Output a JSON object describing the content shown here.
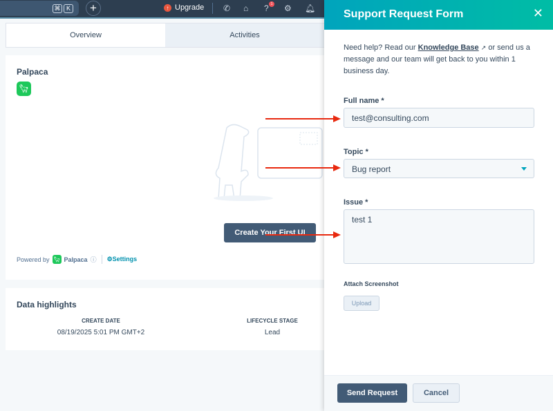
{
  "topbar": {
    "kbd_cmd": "⌘",
    "kbd_k": "K",
    "upgrade": "Upgrade",
    "notification_count": "1"
  },
  "tabs": [
    {
      "label": "Overview"
    },
    {
      "label": "Activities"
    }
  ],
  "app_card": {
    "title": "Palpaca",
    "create_button": "Create Your First UI",
    "powered_by": "Powered by",
    "brand": "Palpaca",
    "settings": "Settings"
  },
  "highlights": {
    "title": "Data highlights",
    "columns": [
      {
        "header": "CREATE DATE",
        "value": "08/19/2025 5:01 PM GMT+2"
      },
      {
        "header": "LIFECYCLE STAGE",
        "value": "Lead"
      }
    ]
  },
  "panel": {
    "title": "Support Request Form",
    "intro_before": "Need help? Read our ",
    "kb_link": "Knowledge Base",
    "intro_after": " or send us a message and our team will get back to you within 1 business day.",
    "full_name_label": "Full name *",
    "full_name_value": "test@consulting.com",
    "topic_label": "Topic *",
    "topic_value": "Bug report",
    "issue_label": "Issue *",
    "issue_value": "test 1",
    "attach_label": "Attach Screenshot",
    "upload": "Upload",
    "send": "Send Request",
    "cancel": "Cancel"
  },
  "colors": {
    "accent": "#00a4bd",
    "primary_button": "#425b76",
    "arrow": "#e8290f",
    "brand_green": "#1dc85a"
  }
}
